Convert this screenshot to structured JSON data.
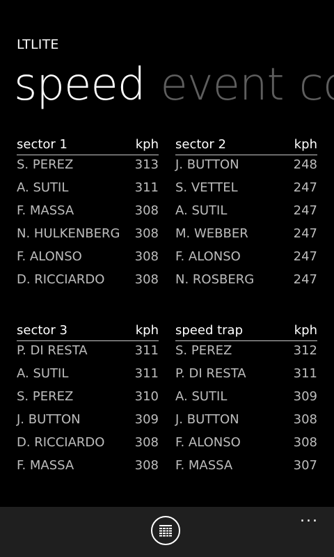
{
  "app": {
    "title": "LTLITE"
  },
  "pivot": {
    "active": "speed",
    "items": [
      "event",
      "co"
    ]
  },
  "tables": [
    {
      "title": "sector 1",
      "unit": "kph",
      "rows": [
        {
          "name": "S. PEREZ",
          "value": "313"
        },
        {
          "name": "A. SUTIL",
          "value": "311"
        },
        {
          "name": "F. MASSA",
          "value": "308"
        },
        {
          "name": "N. HULKENBERG",
          "value": "308"
        },
        {
          "name": "F. ALONSO",
          "value": "308"
        },
        {
          "name": "D. RICCIARDO",
          "value": "308"
        }
      ]
    },
    {
      "title": "sector 2",
      "unit": "kph",
      "rows": [
        {
          "name": "J. BUTTON",
          "value": "248"
        },
        {
          "name": "S. VETTEL",
          "value": "247"
        },
        {
          "name": "A. SUTIL",
          "value": "247"
        },
        {
          "name": "M. WEBBER",
          "value": "247"
        },
        {
          "name": "F. ALONSO",
          "value": "247"
        },
        {
          "name": "N. ROSBERG",
          "value": "247"
        }
      ]
    },
    {
      "title": "sector 3",
      "unit": "kph",
      "rows": [
        {
          "name": "P. DI RESTA",
          "value": "311"
        },
        {
          "name": "A. SUTIL",
          "value": "311"
        },
        {
          "name": "S. PEREZ",
          "value": "310"
        },
        {
          "name": "J. BUTTON",
          "value": "309"
        },
        {
          "name": "D. RICCIARDO",
          "value": "308"
        },
        {
          "name": "F. MASSA",
          "value": "308"
        }
      ]
    },
    {
      "title": "speed trap",
      "unit": "kph",
      "rows": [
        {
          "name": "S. PEREZ",
          "value": "312"
        },
        {
          "name": "P. DI RESTA",
          "value": "311"
        },
        {
          "name": "A. SUTIL",
          "value": "309"
        },
        {
          "name": "J. BUTTON",
          "value": "308"
        },
        {
          "name": "F. ALONSO",
          "value": "308"
        },
        {
          "name": "F. MASSA",
          "value": "307"
        }
      ]
    }
  ],
  "appbar": {
    "button_icon": "list-grid-icon",
    "more_label": "..."
  },
  "colors": {
    "background": "#000000",
    "text_primary": "#ffffff",
    "text_secondary": "#bdbdbd",
    "pivot_inactive": "#5e5e5e",
    "appbar_bg": "#1f1f1f"
  }
}
